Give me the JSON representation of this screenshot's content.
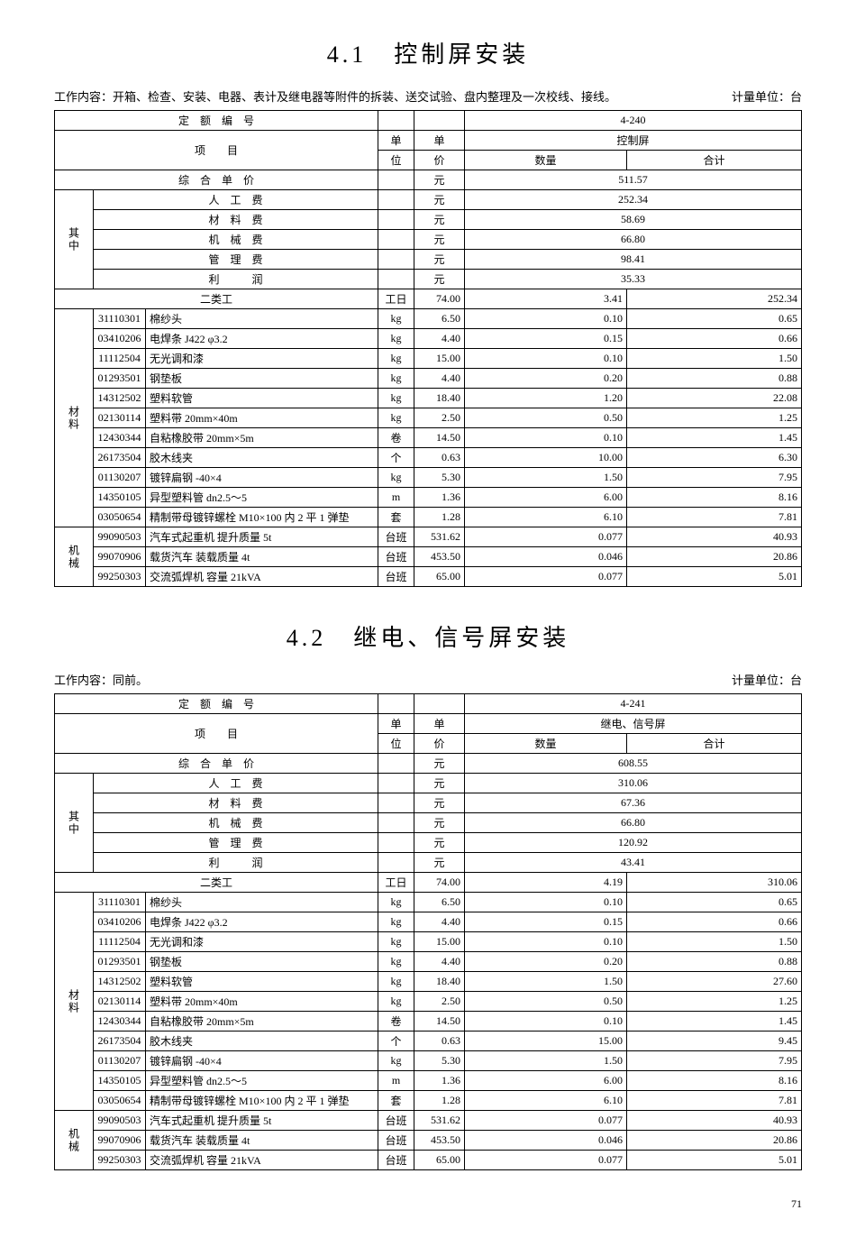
{
  "section1": {
    "title": "4.1　控制屏安装",
    "workDescLabel": "工作内容：",
    "workDesc": "开箱、检查、安装、电器、表计及继电器等附件的拆装、送交试验、盘内整理及一次校线、接线。",
    "unitLabel": "计量单位：台",
    "quotaCode": "4-240",
    "productName": "控制屏",
    "headerLabels": {
      "quotaNo": "定　额　编　号",
      "item": "项　　目",
      "unit1": "单",
      "unit2": "位",
      "price1": "单",
      "price2": "价",
      "qty": "数量",
      "total": "合计",
      "compPrice": "综　合　单　价",
      "yuan": "元"
    },
    "compPrice": "511.57",
    "costs": [
      {
        "label": "人　工　费",
        "unit": "元",
        "value": "252.34"
      },
      {
        "label": "材　料　费",
        "unit": "元",
        "value": "58.69"
      },
      {
        "label": "机　械　费",
        "unit": "元",
        "value": "66.80"
      },
      {
        "label": "管　理　费",
        "unit": "元",
        "value": "98.41"
      },
      {
        "label": "利　　　润",
        "unit": "元",
        "value": "35.33"
      }
    ],
    "costGroupLabel": "其中",
    "labor": {
      "name": "二类工",
      "unit": "工日",
      "price": "74.00",
      "qty": "3.41",
      "total": "252.34"
    },
    "materialGroupLabel": "材料",
    "materials": [
      {
        "code": "31110301",
        "name": "棉纱头",
        "unit": "kg",
        "price": "6.50",
        "qty": "0.10",
        "total": "0.65"
      },
      {
        "code": "03410206",
        "name": "电焊条 J422 φ3.2",
        "unit": "kg",
        "price": "4.40",
        "qty": "0.15",
        "total": "0.66"
      },
      {
        "code": "11112504",
        "name": "无光调和漆",
        "unit": "kg",
        "price": "15.00",
        "qty": "0.10",
        "total": "1.50"
      },
      {
        "code": "01293501",
        "name": "钢垫板",
        "unit": "kg",
        "price": "4.40",
        "qty": "0.20",
        "total": "0.88"
      },
      {
        "code": "14312502",
        "name": "塑料软管",
        "unit": "kg",
        "price": "18.40",
        "qty": "1.20",
        "total": "22.08"
      },
      {
        "code": "02130114",
        "name": "塑料带 20mm×40m",
        "unit": "kg",
        "price": "2.50",
        "qty": "0.50",
        "total": "1.25"
      },
      {
        "code": "12430344",
        "name": "自粘橡胶带 20mm×5m",
        "unit": "卷",
        "price": "14.50",
        "qty": "0.10",
        "total": "1.45"
      },
      {
        "code": "26173504",
        "name": "胶木线夹",
        "unit": "个",
        "price": "0.63",
        "qty": "10.00",
        "total": "6.30"
      },
      {
        "code": "01130207",
        "name": "镀锌扁钢 -40×4",
        "unit": "kg",
        "price": "5.30",
        "qty": "1.50",
        "total": "7.95"
      },
      {
        "code": "14350105",
        "name": "异型塑料管 dn2.5～5",
        "unit": "m",
        "price": "1.36",
        "qty": "6.00",
        "total": "8.16"
      },
      {
        "code": "03050654",
        "name": "精制带母镀锌螺栓 M10×100 内 2 平 1 弹垫",
        "unit": "套",
        "price": "1.28",
        "qty": "6.10",
        "total": "7.81"
      }
    ],
    "machineGroupLabel": "机械",
    "machines": [
      {
        "code": "99090503",
        "name": "汽车式起重机 提升质量 5t",
        "unit": "台班",
        "price": "531.62",
        "qty": "0.077",
        "total": "40.93"
      },
      {
        "code": "99070906",
        "name": "载货汽车 装载质量 4t",
        "unit": "台班",
        "price": "453.50",
        "qty": "0.046",
        "total": "20.86"
      },
      {
        "code": "99250303",
        "name": "交流弧焊机 容量 21kVA",
        "unit": "台班",
        "price": "65.00",
        "qty": "0.077",
        "total": "5.01"
      }
    ]
  },
  "section2": {
    "title": "4.2　继电、信号屏安装",
    "workDescLabel": "工作内容：",
    "workDesc": "同前。",
    "unitLabel": "计量单位：台",
    "quotaCode": "4-241",
    "productName": "继电、信号屏",
    "compPrice": "608.55",
    "costs": [
      {
        "label": "人　工　费",
        "unit": "元",
        "value": "310.06"
      },
      {
        "label": "材　料　费",
        "unit": "元",
        "value": "67.36"
      },
      {
        "label": "机　械　费",
        "unit": "元",
        "value": "66.80"
      },
      {
        "label": "管　理　费",
        "unit": "元",
        "value": "120.92"
      },
      {
        "label": "利　　　润",
        "unit": "元",
        "value": "43.41"
      }
    ],
    "costGroupLabel": "其中",
    "labor": {
      "name": "二类工",
      "unit": "工日",
      "price": "74.00",
      "qty": "4.19",
      "total": "310.06"
    },
    "materialGroupLabel": "材料",
    "materials": [
      {
        "code": "31110301",
        "name": "棉纱头",
        "unit": "kg",
        "price": "6.50",
        "qty": "0.10",
        "total": "0.65"
      },
      {
        "code": "03410206",
        "name": "电焊条 J422 φ3.2",
        "unit": "kg",
        "price": "4.40",
        "qty": "0.15",
        "total": "0.66"
      },
      {
        "code": "11112504",
        "name": "无光调和漆",
        "unit": "kg",
        "price": "15.00",
        "qty": "0.10",
        "total": "1.50"
      },
      {
        "code": "01293501",
        "name": "钢垫板",
        "unit": "kg",
        "price": "4.40",
        "qty": "0.20",
        "total": "0.88"
      },
      {
        "code": "14312502",
        "name": "塑料软管",
        "unit": "kg",
        "price": "18.40",
        "qty": "1.50",
        "total": "27.60"
      },
      {
        "code": "02130114",
        "name": "塑料带 20mm×40m",
        "unit": "kg",
        "price": "2.50",
        "qty": "0.50",
        "total": "1.25"
      },
      {
        "code": "12430344",
        "name": "自粘橡胶带 20mm×5m",
        "unit": "卷",
        "price": "14.50",
        "qty": "0.10",
        "total": "1.45"
      },
      {
        "code": "26173504",
        "name": "胶木线夹",
        "unit": "个",
        "price": "0.63",
        "qty": "15.00",
        "total": "9.45"
      },
      {
        "code": "01130207",
        "name": "镀锌扁钢 -40×4",
        "unit": "kg",
        "price": "5.30",
        "qty": "1.50",
        "total": "7.95"
      },
      {
        "code": "14350105",
        "name": "异型塑料管 dn2.5～5",
        "unit": "m",
        "price": "1.36",
        "qty": "6.00",
        "total": "8.16"
      },
      {
        "code": "03050654",
        "name": "精制带母镀锌螺栓 M10×100 内 2 平 1 弹垫",
        "unit": "套",
        "price": "1.28",
        "qty": "6.10",
        "total": "7.81"
      }
    ],
    "machineGroupLabel": "机械",
    "machines": [
      {
        "code": "99090503",
        "name": "汽车式起重机 提升质量 5t",
        "unit": "台班",
        "price": "531.62",
        "qty": "0.077",
        "total": "40.93"
      },
      {
        "code": "99070906",
        "name": "载货汽车 装载质量 4t",
        "unit": "台班",
        "price": "453.50",
        "qty": "0.046",
        "total": "20.86"
      },
      {
        "code": "99250303",
        "name": "交流弧焊机 容量 21kVA",
        "unit": "台班",
        "price": "65.00",
        "qty": "0.077",
        "total": "5.01"
      }
    ]
  },
  "pageNumber": "71"
}
